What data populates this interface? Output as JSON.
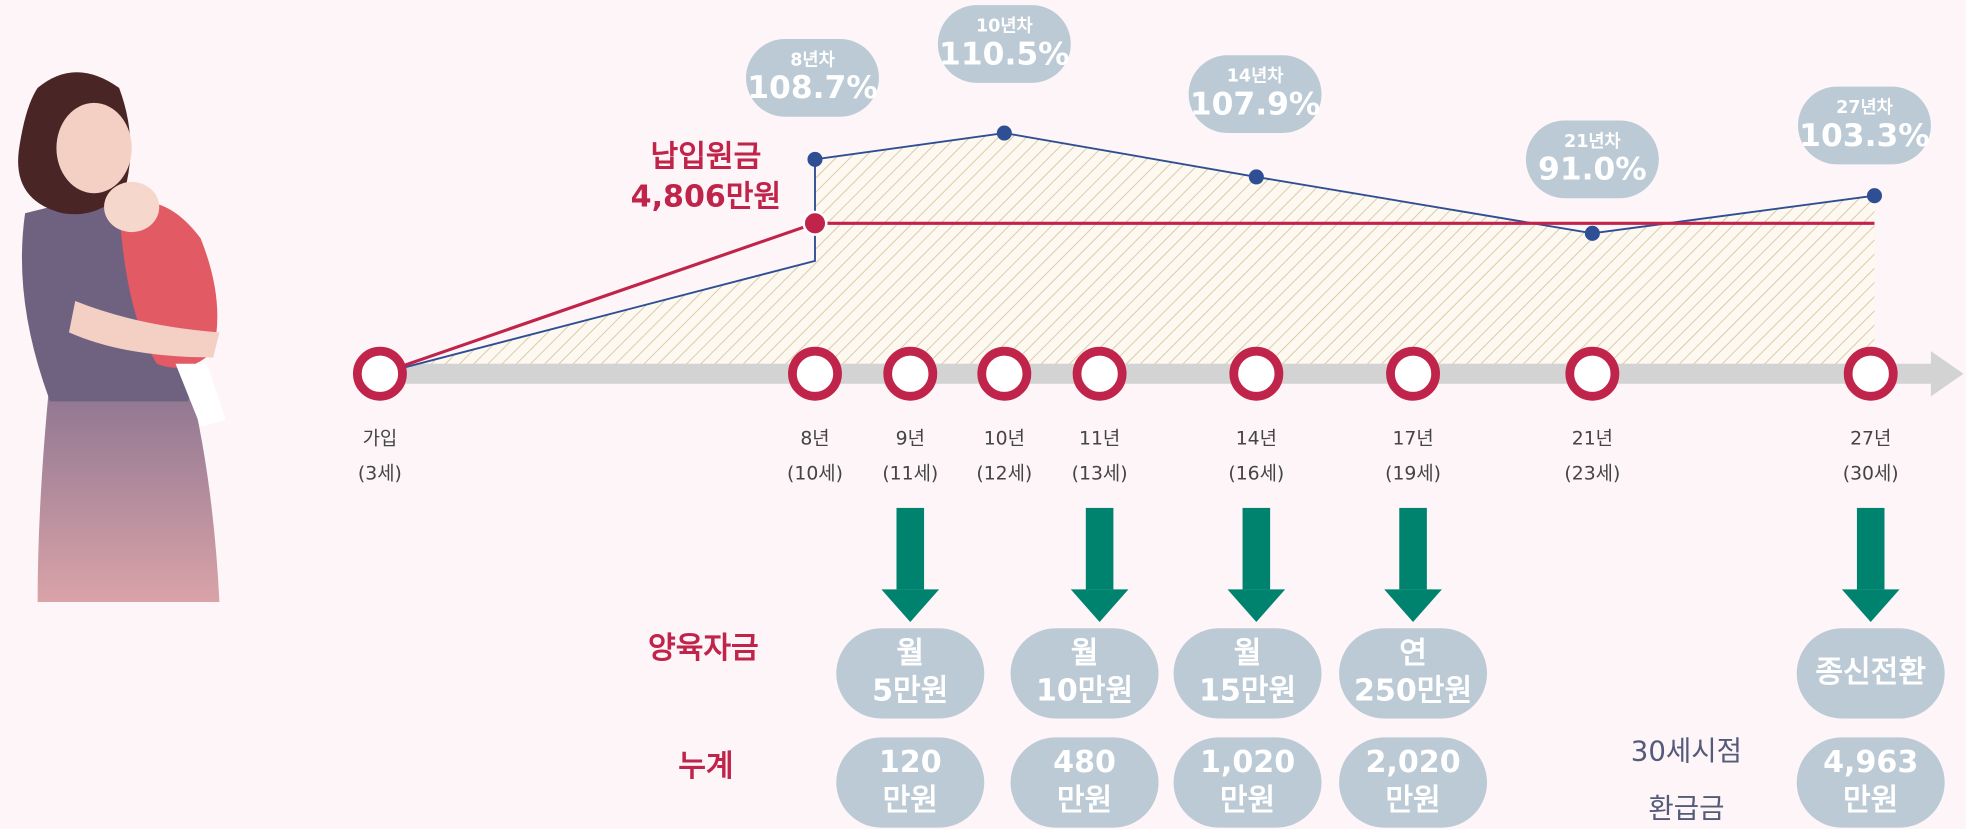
{
  "milestones": [
    {
      "label": "가입",
      "age": "(3세)"
    },
    {
      "label": "8년",
      "age": "(10세)"
    },
    {
      "label": "9년",
      "age": "(11세)"
    },
    {
      "label": "10년",
      "age": "(12세)"
    },
    {
      "label": "11년",
      "age": "(13세)"
    },
    {
      "label": "14년",
      "age": "(16세)"
    },
    {
      "label": "17년",
      "age": "(19세)"
    },
    {
      "label": "21년",
      "age": "(23세)"
    },
    {
      "label": "27년",
      "age": "(30세)"
    }
  ],
  "rates": [
    {
      "year": "8년차",
      "rate": "108.7%"
    },
    {
      "year": "10년차",
      "rate": "110.5%"
    },
    {
      "year": "14년차",
      "rate": "107.9%"
    },
    {
      "year": "21년차",
      "rate": "91.0%"
    },
    {
      "year": "27년차",
      "rate": "103.3%"
    }
  ],
  "principal": {
    "label": "납입원금",
    "amount": "4,806만원"
  },
  "allowance": {
    "label": "양육자금",
    "items": [
      [
        "월",
        "5만원"
      ],
      [
        "월",
        "10만원"
      ],
      [
        "월",
        "15만원"
      ],
      [
        "연",
        "250만원"
      ],
      [
        "종신전환"
      ]
    ]
  },
  "cumulative": {
    "label": "누계",
    "items": [
      [
        "120",
        "만원"
      ],
      [
        "480",
        "만원"
      ],
      [
        "1,020",
        "만원"
      ],
      [
        "2,020",
        "만원"
      ],
      [
        "4,963",
        "만원"
      ]
    ]
  },
  "refund": {
    "label": [
      "30세시점",
      "환급금"
    ]
  }
}
